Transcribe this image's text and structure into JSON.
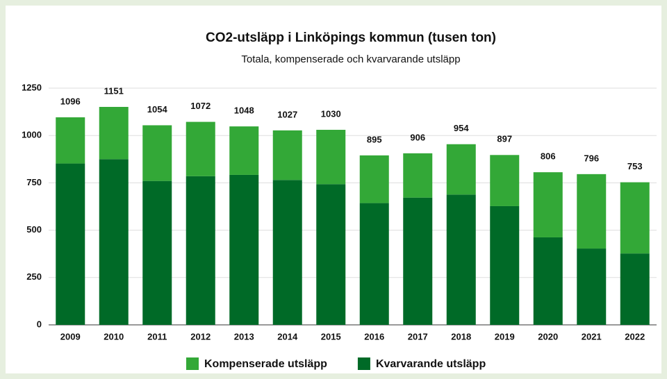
{
  "chart_data": {
    "type": "stacked_bar",
    "title": "CO2-utsläpp i Linköpings kommun (tusen ton)",
    "subtitle": "Totala, kompenserade och kvarvarande utsläpp",
    "categories": [
      "2009",
      "2010",
      "2011",
      "2012",
      "2013",
      "2014",
      "2015",
      "2016",
      "2017",
      "2018",
      "2019",
      "2020",
      "2021",
      "2022"
    ],
    "series": [
      {
        "name": "Kvarvarande utsläpp",
        "color": "#006a27",
        "values": [
          852,
          875,
          760,
          785,
          792,
          765,
          743,
          643,
          672,
          688,
          627,
          462,
          403,
          377
        ]
      },
      {
        "name": "Kompenserade utsläpp",
        "color": "#33a837",
        "values": [
          244,
          276,
          294,
          287,
          256,
          262,
          287,
          252,
          234,
          266,
          270,
          344,
          393,
          376
        ]
      }
    ],
    "totals": [
      1096,
      1151,
      1054,
      1072,
      1048,
      1027,
      1030,
      895,
      906,
      954,
      897,
      806,
      796,
      753
    ],
    "ylim": [
      0,
      1250
    ],
    "yticks": [
      0,
      250,
      500,
      750,
      1000,
      1250
    ],
    "grid": true,
    "legend": "bottom"
  }
}
